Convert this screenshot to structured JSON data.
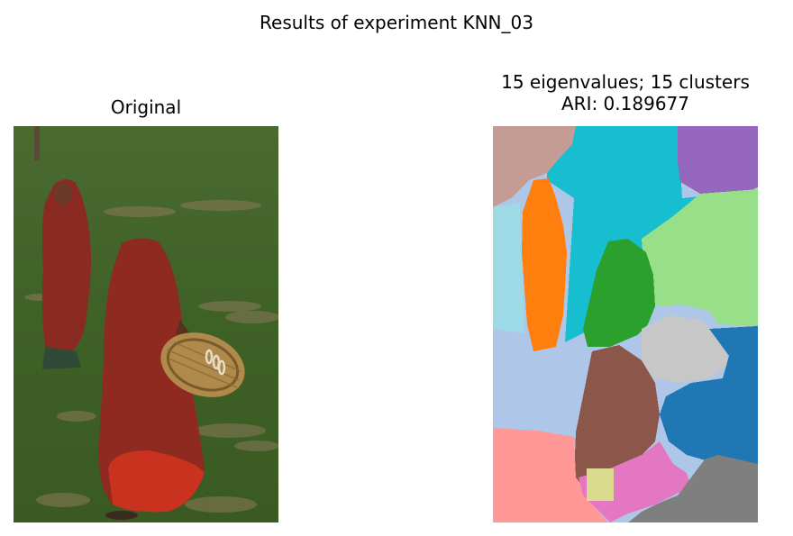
{
  "figure": {
    "suptitle": "Results of experiment KNN_03"
  },
  "panels": [
    {
      "title_lines": [
        "Original"
      ],
      "image": "photo of two women in red saris walking through a green field, one carrying a wicker basket"
    },
    {
      "title_lines": [
        "15 eigenvalues; 15 clusters",
        "ARI: 0.189677"
      ],
      "image": "segmentation map with 15 colored clusters"
    }
  ],
  "cluster_colors": [
    "#1f77b4",
    "#aec7e8",
    "#ff7f0e",
    "#2ca02c",
    "#98df8a",
    "#9467bd",
    "#8c564b",
    "#c49c94",
    "#e377c2",
    "#7f7f7f",
    "#c7c7c7",
    "#dbdb8d",
    "#17becf",
    "#9edae5",
    "#ff9896"
  ]
}
